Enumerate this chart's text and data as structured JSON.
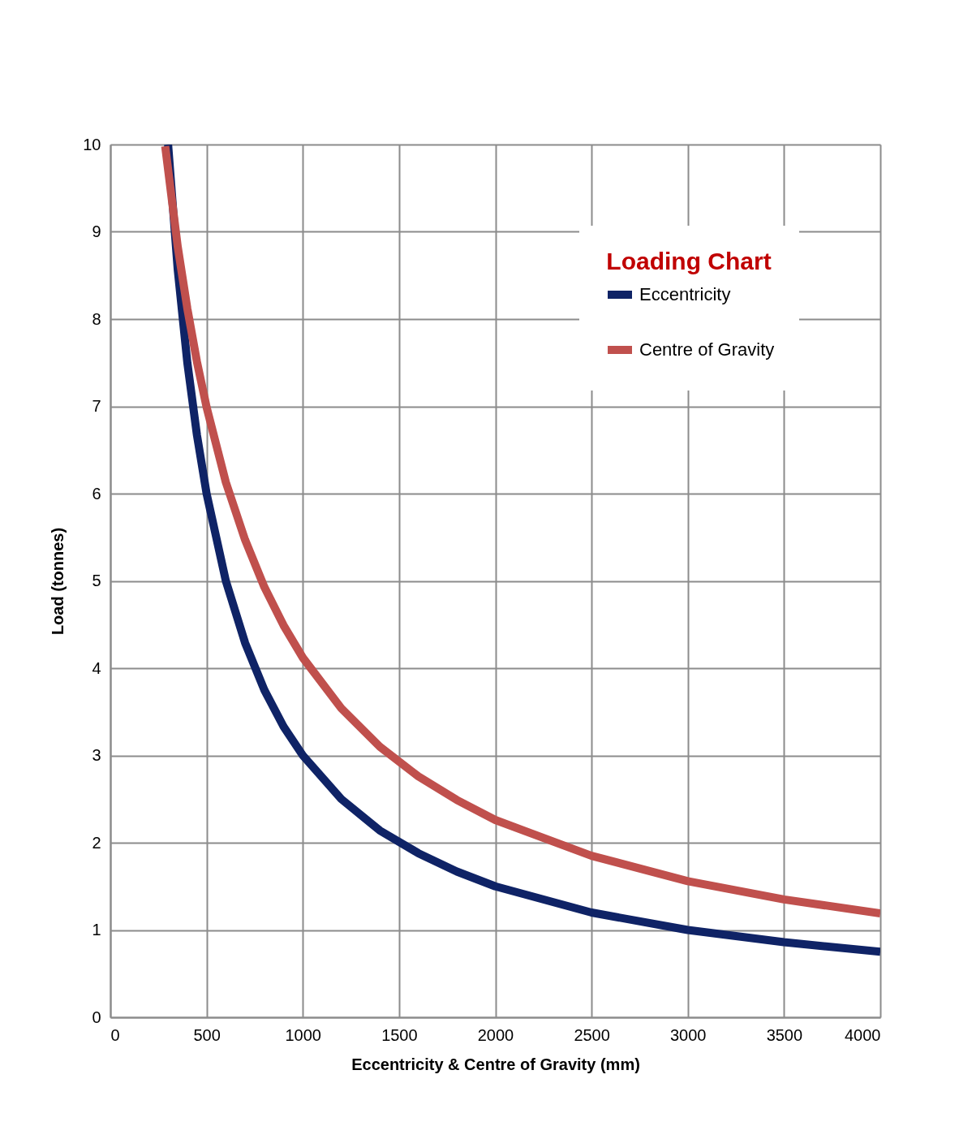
{
  "chart_data": {
    "type": "line",
    "xlabel": "Eccentricity & Centre of Gravity (mm)",
    "ylabel": "Load (tonnes)",
    "legend_title": "Loading Chart",
    "xlim": [
      0,
      4000
    ],
    "ylim": [
      0,
      10
    ],
    "xticks": [
      0,
      500,
      1000,
      1500,
      2000,
      2500,
      3000,
      3500,
      4000
    ],
    "yticks": [
      0,
      1,
      2,
      3,
      4,
      5,
      6,
      7,
      8,
      9,
      10
    ],
    "grid": true,
    "legend": "top right",
    "marker": "none",
    "line_style": "solid",
    "series": [
      {
        "name": "Eccentricity",
        "color": "#0f2366",
        "x": [
          300,
          350,
          400,
          450,
          500,
          600,
          700,
          800,
          900,
          1000,
          1200,
          1400,
          1600,
          1800,
          2000,
          2500,
          3000,
          3500,
          4000
        ],
        "values": [
          10,
          8.57,
          7.5,
          6.67,
          6,
          5,
          4.29,
          3.75,
          3.33,
          3,
          2.5,
          2.14,
          1.88,
          1.67,
          1.5,
          1.2,
          1,
          0.86,
          0.75
        ]
      },
      {
        "name": "Centre of Gravity",
        "color": "#c0504d",
        "x": [
          285,
          350,
          400,
          450,
          500,
          600,
          700,
          800,
          900,
          1000,
          1200,
          1400,
          1600,
          1800,
          2000,
          2500,
          3000,
          3500,
          4000
        ],
        "values": [
          9.98,
          8.83,
          8.12,
          7.51,
          6.99,
          6.13,
          5.47,
          4.93,
          4.49,
          4.12,
          3.54,
          3.1,
          2.76,
          2.49,
          2.26,
          1.85,
          1.56,
          1.35,
          1.19
        ]
      }
    ]
  }
}
